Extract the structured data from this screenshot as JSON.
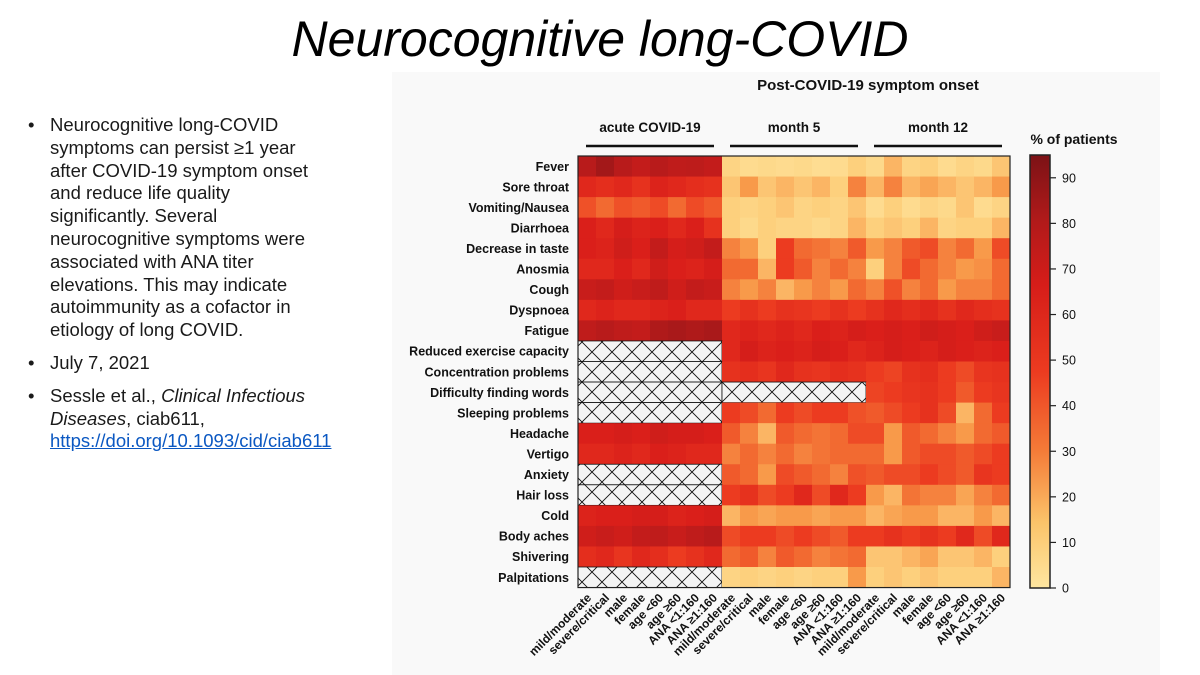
{
  "slide": {
    "title": "Neurocognitive long-COVID",
    "bullets": {
      "summary": "Neurocognitive long-COVID symptoms can persist ≥1 year after COVID-19 symptom onset and reduce life quality significantly. Several neurocognitive symptoms were associated with ANA titer elevations. This may indicate autoimmunity as a cofactor in etiology of long COVID.",
      "date": "July 7, 2021",
      "citation_authors": "Sessle et al., ",
      "citation_journal": "Clinical Infectious Diseases",
      "citation_id": ", ciab611, ",
      "citation_link": "https://doi.org/10.1093/cid/ciab611"
    }
  },
  "chart_data": {
    "type": "heatmap",
    "title": "Post-COVID-19 symptom onset",
    "legend_title": "% of patients",
    "scale_min": 0,
    "scale_max": 95,
    "colorbar_ticks": [
      0,
      10,
      20,
      30,
      40,
      50,
      60,
      70,
      80,
      90
    ],
    "colors": {
      "low": "#fee6a0",
      "mid": "#f03a1c",
      "high": "#8c1418",
      "missing_hatch": "#111111"
    },
    "groups": [
      "acute COVID-19",
      "month 5",
      "month 12"
    ],
    "columns": [
      "mild/moderate",
      "severe/critical",
      "male",
      "female",
      "age <60",
      "age ≥60",
      "ANA <1:160",
      "ANA ≥1:160"
    ],
    "rows": [
      "Fever",
      "Sore throat",
      "Vomiting/Nausea",
      "Diarrhoea",
      "Decrease in taste",
      "Anosmia",
      "Cough",
      "Dyspnoea",
      "Fatigue",
      "Reduced exercise capacity",
      "Concentration problems",
      "Difficulty finding words",
      "Sleeping problems",
      "Headache",
      "Vertigo",
      "Anxiety",
      "Hair loss",
      "Cold",
      "Body aches",
      "Shivering",
      "Palpitations"
    ],
    "values": [
      [
        [
          75,
          82,
          75,
          70,
          75,
          72,
          73,
          70
        ],
        [
          8,
          5,
          6,
          5,
          6,
          4,
          5,
          10
        ],
        [
          6,
          15,
          8,
          10,
          5,
          8,
          6,
          12
        ]
      ],
      [
        [
          55,
          52,
          55,
          50,
          58,
          55,
          52,
          50
        ],
        [
          12,
          20,
          12,
          15,
          12,
          15,
          10,
          25
        ],
        [
          15,
          25,
          15,
          18,
          15,
          12,
          15,
          20
        ]
      ],
      [
        [
          38,
          30,
          38,
          35,
          40,
          30,
          40,
          35
        ],
        [
          10,
          8,
          10,
          12,
          8,
          10,
          8,
          12
        ],
        [
          5,
          10,
          5,
          8,
          6,
          12,
          5,
          8
        ]
      ],
      [
        [
          60,
          55,
          62,
          58,
          60,
          55,
          60,
          50
        ],
        [
          10,
          6,
          10,
          8,
          8,
          6,
          8,
          15
        ],
        [
          10,
          12,
          10,
          15,
          8,
          10,
          10,
          15
        ]
      ],
      [
        [
          60,
          58,
          65,
          60,
          70,
          62,
          65,
          70
        ],
        [
          25,
          20,
          10,
          45,
          30,
          28,
          25,
          35
        ],
        [
          20,
          25,
          35,
          40,
          25,
          30,
          20,
          40
        ]
      ],
      [
        [
          55,
          55,
          60,
          55,
          65,
          60,
          58,
          62
        ],
        [
          30,
          30,
          15,
          45,
          35,
          25,
          30,
          25
        ],
        [
          10,
          25,
          40,
          30,
          25,
          20,
          22,
          30
        ]
      ],
      [
        [
          68,
          70,
          65,
          68,
          72,
          65,
          70,
          68
        ],
        [
          25,
          20,
          25,
          15,
          20,
          25,
          20,
          30
        ],
        [
          25,
          38,
          25,
          30,
          20,
          25,
          25,
          30
        ]
      ],
      [
        [
          55,
          58,
          55,
          55,
          58,
          60,
          55,
          55
        ],
        [
          45,
          50,
          45,
          50,
          48,
          45,
          50,
          45
        ],
        [
          50,
          55,
          52,
          55,
          50,
          55,
          52,
          50
        ]
      ],
      [
        [
          72,
          75,
          72,
          70,
          78,
          80,
          78,
          80
        ],
        [
          55,
          58,
          55,
          58,
          55,
          60,
          58,
          62
        ],
        [
          60,
          62,
          60,
          65,
          62,
          60,
          65,
          68
        ]
      ],
      [
        null,
        [
          55,
          62,
          58,
          60,
          58,
          62,
          60,
          55
        ],
        [
          58,
          62,
          60,
          58,
          62,
          60,
          58,
          60
        ]
      ],
      [
        null,
        [
          50,
          52,
          48,
          55,
          50,
          48,
          52,
          50
        ],
        [
          45,
          42,
          50,
          52,
          45,
          40,
          48,
          50
        ]
      ],
      [
        null,
        null,
        [
          42,
          45,
          48,
          50,
          45,
          35,
          45,
          48
        ]
      ],
      [
        null,
        [
          45,
          40,
          30,
          45,
          40,
          45,
          45,
          38
        ],
        [
          35,
          40,
          45,
          50,
          40,
          15,
          30,
          45
        ]
      ],
      [
        [
          60,
          60,
          62,
          60,
          65,
          62,
          62,
          60
        ],
        [
          35,
          25,
          15,
          35,
          30,
          28,
          30,
          40
        ],
        [
          40,
          20,
          35,
          30,
          25,
          20,
          30,
          35
        ]
      ],
      [
        [
          55,
          55,
          58,
          55,
          60,
          58,
          55,
          55
        ],
        [
          25,
          30,
          25,
          30,
          25,
          28,
          30,
          30
        ],
        [
          30,
          20,
          35,
          40,
          40,
          35,
          40,
          45
        ]
      ],
      [
        null,
        [
          35,
          30,
          20,
          40,
          35,
          30,
          25,
          38
        ],
        [
          35,
          40,
          40,
          45,
          40,
          35,
          48,
          45
        ]
      ],
      [
        null,
        [
          45,
          50,
          40,
          45,
          55,
          40,
          55,
          45
        ],
        [
          20,
          15,
          28,
          25,
          25,
          18,
          25,
          30
        ]
      ],
      [
        [
          58,
          60,
          60,
          62,
          62,
          58,
          60,
          62
        ],
        [
          15,
          20,
          18,
          20,
          20,
          18,
          20,
          20
        ],
        [
          15,
          18,
          20,
          20,
          15,
          15,
          20,
          15
        ]
      ],
      [
        [
          65,
          68,
          65,
          70,
          72,
          68,
          72,
          75
        ],
        [
          40,
          45,
          45,
          40,
          45,
          40,
          35,
          45
        ],
        [
          45,
          50,
          45,
          50,
          45,
          55,
          40,
          55
        ]
      ],
      [
        [
          52,
          55,
          48,
          55,
          52,
          45,
          50,
          55
        ],
        [
          30,
          35,
          25,
          35,
          30,
          25,
          28,
          30
        ],
        [
          12,
          12,
          15,
          18,
          12,
          12,
          15,
          10
        ]
      ],
      [
        null,
        [
          8,
          10,
          8,
          10,
          8,
          10,
          10,
          20
        ],
        [
          10,
          12,
          10,
          12,
          10,
          10,
          10,
          15
        ]
      ]
    ]
  }
}
